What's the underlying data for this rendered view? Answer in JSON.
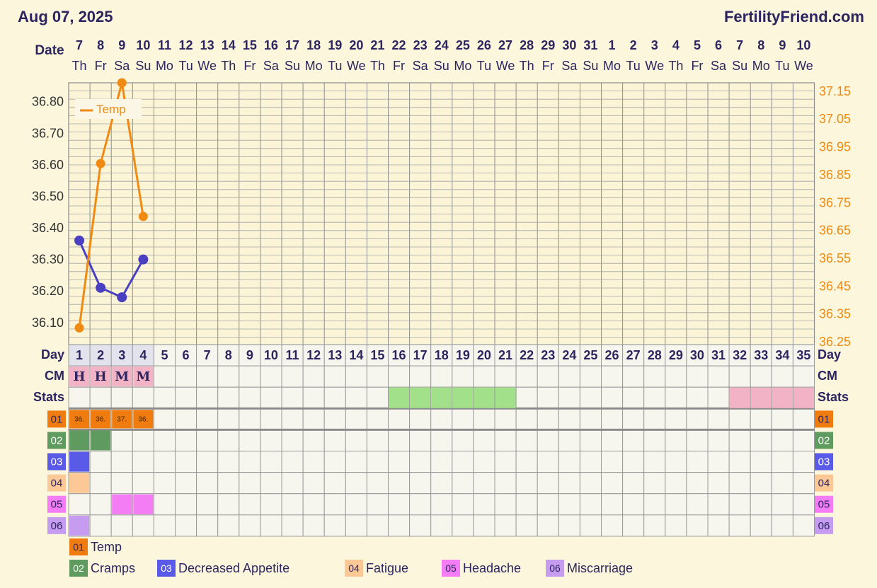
{
  "header": {
    "date_title": "Aug 07, 2025",
    "site": "FertilityFriend.com"
  },
  "labels": {
    "date": "Date",
    "day": "Day",
    "cm": "CM",
    "stats": "Stats"
  },
  "temp_legend_label": "Temp",
  "dates": [
    "7",
    "8",
    "9",
    "10",
    "11",
    "12",
    "13",
    "14",
    "15",
    "16",
    "17",
    "18",
    "19",
    "20",
    "21",
    "22",
    "23",
    "24",
    "25",
    "26",
    "27",
    "28",
    "29",
    "30",
    "31",
    "1",
    "2",
    "3",
    "4",
    "5",
    "6",
    "7",
    "8",
    "9",
    "10"
  ],
  "weekdays": [
    "Th",
    "Fr",
    "Sa",
    "Su",
    "Mo",
    "Tu",
    "We",
    "Th",
    "Fr",
    "Sa",
    "Su",
    "Mo",
    "Tu",
    "We",
    "Th",
    "Fr",
    "Sa",
    "Su",
    "Mo",
    "Tu",
    "We",
    "Th",
    "Fr",
    "Sa",
    "Su",
    "Mo",
    "Tu",
    "We",
    "Th",
    "Fr",
    "Sa",
    "Su",
    "Mo",
    "Tu",
    "We"
  ],
  "cycle_days": [
    "1",
    "2",
    "3",
    "4",
    "5",
    "6",
    "7",
    "8",
    "9",
    "10",
    "11",
    "12",
    "13",
    "14",
    "15",
    "16",
    "17",
    "18",
    "19",
    "20",
    "21",
    "22",
    "23",
    "24",
    "25",
    "26",
    "27",
    "28",
    "29",
    "30",
    "31",
    "32",
    "33",
    "34",
    "35"
  ],
  "cm_codes": [
    "H",
    "H",
    "M",
    "M"
  ],
  "colors": {
    "temp": "#f08a12",
    "second_series": "#4a3fc0",
    "fertile_stats": "#a3e08a",
    "end_stats": "#f2b3c6",
    "cm_cell": "#f2b3c6",
    "r01": "#f07c10",
    "r02": "#5f9a5f",
    "r03": "#5a5ae8",
    "r04": "#fcc896",
    "r05": "#f47cf4",
    "r06": "#c59cf0"
  },
  "chart_data": {
    "type": "line",
    "x": [
      1,
      2,
      3,
      4
    ],
    "left_axis": {
      "ticks": [
        "36.10",
        "36.20",
        "36.30",
        "36.40",
        "36.50",
        "36.60",
        "36.70",
        "36.80"
      ],
      "range": [
        36.03,
        36.86
      ]
    },
    "right_axis": {
      "ticks": [
        "36.25",
        "36.35",
        "36.45",
        "36.55",
        "36.65",
        "36.75",
        "36.85",
        "36.95",
        "37.05",
        "37.15"
      ],
      "range": [
        36.24,
        37.18
      ]
    },
    "series": [
      {
        "name": "Temp",
        "axis": "right",
        "values": [
          36.3,
          36.89,
          37.18,
          36.7
        ]
      },
      {
        "axis": "left",
        "values": [
          36.36,
          36.21,
          36.18,
          36.3
        ]
      }
    ],
    "grid": true,
    "legend_position": "top-left"
  },
  "stats_green_days": [
    16,
    17,
    18,
    19,
    20,
    21
  ],
  "stats_pink_days": [
    32,
    33,
    34,
    35
  ],
  "rows": [
    {
      "code": "01",
      "label": "Temp"
    },
    {
      "code": "02",
      "label": "Cramps"
    },
    {
      "code": "03",
      "label": "Decreased Appetite"
    },
    {
      "code": "04",
      "label": "Fatigue"
    },
    {
      "code": "05",
      "label": "Headache"
    },
    {
      "code": "06",
      "label": "Miscarriage"
    }
  ],
  "temp_row_values": [
    "36.",
    "36.",
    "37.",
    "36."
  ],
  "row_fills": {
    "02": [
      1,
      2
    ],
    "03": [
      1
    ],
    "04": [
      1
    ],
    "05": [
      3,
      4
    ],
    "06": [
      1
    ]
  }
}
